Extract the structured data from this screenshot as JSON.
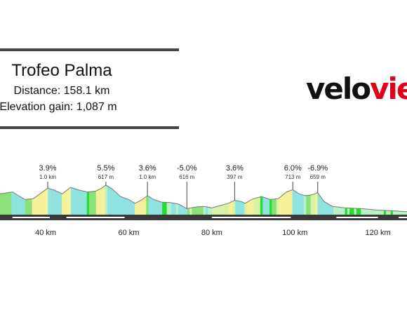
{
  "race": {
    "title": "Trofeo Palma",
    "distance_text": "Distance: 158.1 km",
    "elevation_label": "Elevation gain: ",
    "elevation_value": "1,087 m"
  },
  "logo": {
    "part1": "velo",
    "part2": "view",
    "color1": "#111111",
    "color2": "#e1001a"
  },
  "chart_data": {
    "type": "area",
    "title": "",
    "x_unit": "km",
    "xlim": [
      29,
      127
    ],
    "x_ticks": [
      40,
      60,
      80,
      100,
      120
    ],
    "x_tick_labels": [
      "40 km",
      "60 km",
      "80 km",
      "100 km",
      "120 km"
    ],
    "profile_relative": [
      [
        29,
        0.55
      ],
      [
        32,
        0.6
      ],
      [
        35,
        0.4
      ],
      [
        37,
        0.42
      ],
      [
        39,
        0.58
      ],
      [
        40.5,
        0.7
      ],
      [
        42,
        0.65
      ],
      [
        44,
        0.55
      ],
      [
        46,
        0.72
      ],
      [
        48,
        0.65
      ],
      [
        50,
        0.6
      ],
      [
        52,
        0.62
      ],
      [
        53.5,
        0.7
      ],
      [
        54.5,
        0.78
      ],
      [
        56,
        0.68
      ],
      [
        58,
        0.48
      ],
      [
        60,
        0.4
      ],
      [
        61.5,
        0.3
      ],
      [
        63,
        0.38
      ],
      [
        64.5,
        0.5
      ],
      [
        66,
        0.4
      ],
      [
        68,
        0.33
      ],
      [
        70,
        0.32
      ],
      [
        72,
        0.28
      ],
      [
        74,
        0.16
      ],
      [
        76,
        0.2
      ],
      [
        78,
        0.22
      ],
      [
        80,
        0.18
      ],
      [
        82,
        0.24
      ],
      [
        84,
        0.3
      ],
      [
        85.5,
        0.38
      ],
      [
        87,
        0.35
      ],
      [
        88,
        0.3
      ],
      [
        90,
        0.42
      ],
      [
        92,
        0.48
      ],
      [
        94,
        0.4
      ],
      [
        96,
        0.42
      ],
      [
        98,
        0.6
      ],
      [
        99.5,
        0.66
      ],
      [
        101,
        0.55
      ],
      [
        102.5,
        0.5
      ],
      [
        104,
        0.52
      ],
      [
        105.5,
        0.58
      ],
      [
        107,
        0.35
      ],
      [
        109,
        0.22
      ],
      [
        112,
        0.18
      ],
      [
        116,
        0.16
      ],
      [
        120,
        0.12
      ],
      [
        124,
        0.1
      ],
      [
        127,
        0.08
      ]
    ],
    "climbs": [
      {
        "km": 40.5,
        "gradient": "3.9%",
        "length": "1.0 km"
      },
      {
        "km": 54.5,
        "gradient": "5.5%",
        "length": "617 m"
      },
      {
        "km": 64.5,
        "gradient": "3.6%",
        "length": "1.0 km"
      },
      {
        "km": 74,
        "gradient": "-5.0%",
        "length": "616 m"
      },
      {
        "km": 85.5,
        "gradient": "3.6%",
        "length": "397 m"
      },
      {
        "km": 99.5,
        "gradient": "6.0%",
        "length": "713 m"
      },
      {
        "km": 105.5,
        "gradient": "-6.9%",
        "length": "659 m"
      }
    ],
    "segment_colors": {
      "descent_steep": "#8fe3e0",
      "descent": "#b9f0c7",
      "flat": "#22e02a",
      "gentle": "#8be07a",
      "moderate": "#d8f2a6",
      "steep": "#f5f29a"
    },
    "grid": false
  }
}
